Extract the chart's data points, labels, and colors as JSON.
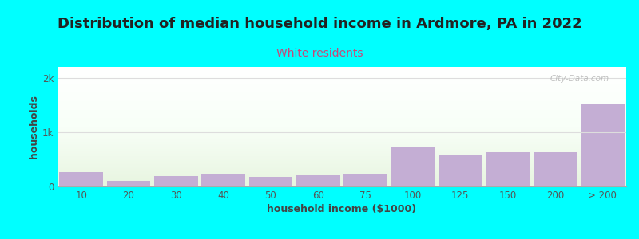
{
  "title": "Distribution of median household income in Ardmore, PA in 2022",
  "subtitle": "White residents",
  "xlabel": "household income ($1000)",
  "ylabel": "households",
  "background_color": "#00FFFF",
  "bar_color": "#c4aed4",
  "categories": [
    "10",
    "20",
    "30",
    "40",
    "50",
    "60",
    "75",
    "100",
    "125",
    "150",
    "200",
    "> 200"
  ],
  "values": [
    270,
    100,
    185,
    240,
    175,
    205,
    230,
    730,
    590,
    630,
    630,
    1530
  ],
  "ylim": [
    0,
    2200
  ],
  "yticks": [
    0,
    1000,
    2000
  ],
  "ytick_labels": [
    "0",
    "1k",
    "2k"
  ],
  "title_fontsize": 13,
  "subtitle_fontsize": 10,
  "label_fontsize": 9,
  "tick_fontsize": 8.5,
  "subtitle_color": "#cc4477",
  "title_color": "#222222",
  "axis_label_color": "#444444",
  "tick_color": "#555555",
  "watermark": "City-Data.com",
  "grid_color": "#dddddd",
  "bg_top_color": "#f5fff5",
  "bg_bottom_color": "#ffffff"
}
